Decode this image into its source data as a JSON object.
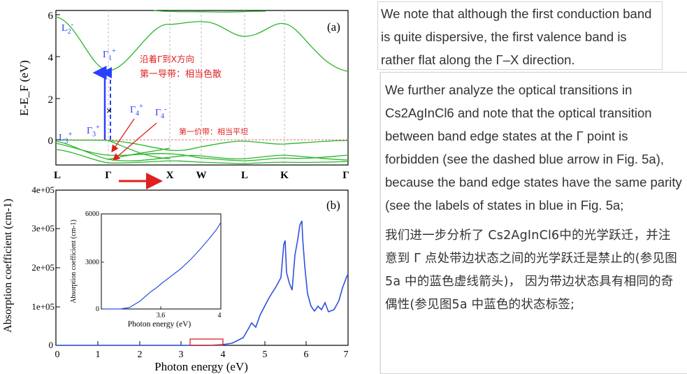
{
  "figure": {
    "panel_a": {
      "label": "(a)",
      "ylabel": "E-E_F (eV)",
      "y_ticks": [
        "6",
        "4",
        "2",
        "0"
      ],
      "ylim": [
        -1.2,
        6.2
      ],
      "k_labels": [
        "L",
        "Γ",
        "X",
        "W",
        "L",
        "K",
        "Γ"
      ],
      "state_labels": {
        "l2": "L2-",
        "l3": "L3+",
        "g1": "Γ1+",
        "g3": "Γ3+",
        "g4p": "Γ4+",
        "g4m": "Γ4-"
      },
      "annotations": {
        "dispersive_line1": "沿着Γ到X方向",
        "dispersive_line2": "第一导带：相当色散",
        "flat_valence": "第一价带：相当平坦",
        "forbidden_mark": "×"
      }
    },
    "panel_b": {
      "label": "(b)",
      "ylabel": "Absorption coefficient (cm-1)",
      "xlabel": "Photon energy (eV)",
      "x_ticks": [
        "0",
        "1",
        "2",
        "3",
        "4",
        "5",
        "6",
        "7"
      ],
      "y_ticks": [
        "0",
        "1e+05",
        "2e+05",
        "3e+05",
        "4e+05"
      ],
      "inset": {
        "ylabel": "Absorption coefficient (cm-1)",
        "xlabel": "Photon energy (eV)",
        "x_ticks": [
          "3.6",
          "4"
        ],
        "y_ticks": [
          "0",
          "3000",
          "6000"
        ]
      }
    },
    "colors": {
      "bands": "#2bb52b",
      "absorption": "#3050e0",
      "blue_labels": "#2a40ff",
      "annotation_red": "#e02020"
    }
  },
  "chart_data": [
    {
      "type": "line",
      "title": "",
      "xlabel": "",
      "ylabel": "E-E_F (eV)",
      "x_ticks": [
        "L",
        "Γ",
        "X",
        "W",
        "L",
        "K",
        "Γ"
      ],
      "ylim": [
        -1.2,
        6.2
      ],
      "series": [
        {
          "x": [
            "L",
            "Γ",
            "X",
            "W",
            "L",
            "K",
            "Γ"
          ],
          "values": [
            5.0,
            3.4,
            5.7,
            5.6,
            5.0,
            5.6,
            3.4
          ]
        },
        {
          "x": [
            "L",
            "Γ",
            "X",
            "W",
            "L",
            "K",
            "Γ"
          ],
          "values": [
            0.0,
            -0.05,
            -0.75,
            -0.7,
            -0.1,
            -0.2,
            -0.05
          ]
        }
      ]
    },
    {
      "type": "line",
      "title": "",
      "xlabel": "Photon energy (eV)",
      "ylabel": "Absorption coefficient (cm-1)",
      "xlim": [
        0,
        7
      ],
      "ylim": [
        0,
        400000
      ],
      "series": [
        {
          "x": [
            0,
            3.3,
            3.8,
            4.2,
            4.6,
            4.9,
            5.2,
            5.4,
            5.5,
            5.6,
            5.75,
            5.85,
            5.9,
            6.0,
            6.2,
            6.5,
            6.8,
            7.0
          ],
          "values": [
            0,
            0,
            2000,
            6000,
            28000,
            55000,
            110000,
            170000,
            270000,
            180000,
            260000,
            325000,
            180000,
            90000,
            100000,
            85000,
            110000,
            180000
          ]
        }
      ]
    },
    {
      "type": "line",
      "title": "",
      "xlabel": "Photon energy (eV)",
      "ylabel": "Absorption coefficient (cm-1)",
      "xlim": [
        3.2,
        4.0
      ],
      "ylim": [
        0,
        6000
      ],
      "series": [
        {
          "x": [
            3.2,
            3.4,
            3.5,
            3.6,
            3.7,
            3.8,
            3.9,
            4.0
          ],
          "values": [
            0,
            0,
            500,
            1000,
            1600,
            2600,
            3900,
            5500
          ]
        }
      ]
    }
  ],
  "text": {
    "box1": "We note that although the first conduction band is quite dispersive, the first valence band is rather flat along the Γ–X direction.",
    "box2_en": "We further analyze the optical transitions in Cs2AgInCl6 and note that the optical transition between band edge states at the Γ point is forbidden (see the dashed blue arrow in Fig. 5a), because the band edge states have the same parity (see the labels of states in blue in Fig. 5a;",
    "box2_zh": "我们进一步分析了 Cs2AgInCl6中的光学跃迁，并注意到 Γ 点处带边状态之间的光学跃迁是禁止的(参见图5a 中的蓝色虚线箭头)， 因为带边状态具有相同的奇偶性(参见图5a 中蓝色的状态标签;"
  }
}
